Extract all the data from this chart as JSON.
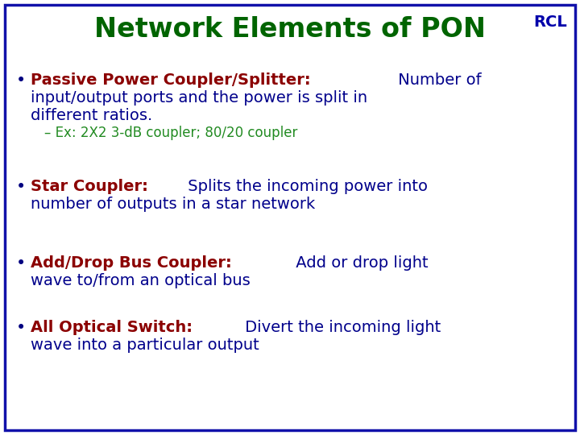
{
  "title": "Network Elements of PON",
  "rcl_label": "RCL",
  "title_color": "#006400",
  "rcl_color": "#0000AA",
  "background_color": "#FFFFFF",
  "border_color": "#1111AA",
  "bullet_color": "#000080",
  "title_fontsize": 24,
  "rcl_fontsize": 14,
  "bullet_fontsize": 14,
  "sub_fontsize": 12,
  "label_color": "#8B0000",
  "text_color": "#00008B",
  "sub_color": "#228B22",
  "blocks": [
    {
      "type": "bullet",
      "segments": [
        {
          "text": "Passive Power Coupler/Splitter:",
          "bold": true,
          "color": "#8B0000"
        },
        {
          "text": " Number of input/output ports and the power is split in different ratios.",
          "bold": false,
          "color": "#00008B"
        }
      ],
      "sub": "– Ex: 2X2 3-dB coupler; 80/20 coupler"
    },
    {
      "type": "bullet",
      "segments": [
        {
          "text": "Star Coupler:",
          "bold": true,
          "color": "#8B0000"
        },
        {
          "text": " Splits the incoming power into number of outputs in a star network",
          "bold": false,
          "color": "#00008B"
        }
      ],
      "sub": null
    },
    {
      "type": "bullet",
      "segments": [
        {
          "text": "Add/Drop Bus Coupler:",
          "bold": true,
          "color": "#8B0000"
        },
        {
          "text": " Add or drop light wave to/from an optical bus",
          "bold": false,
          "color": "#00008B"
        }
      ],
      "sub": null
    },
    {
      "type": "bullet",
      "segments": [
        {
          "text": "All Optical Switch:",
          "bold": true,
          "color": "#8B0000"
        },
        {
          "text": " Divert the incoming light wave into a particular output",
          "bold": false,
          "color": "#00008B"
        }
      ],
      "sub": null
    }
  ]
}
